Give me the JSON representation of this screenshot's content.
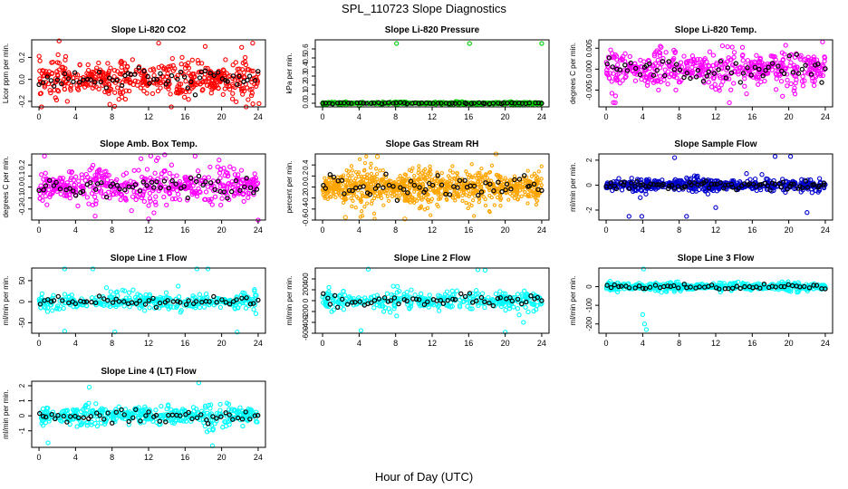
{
  "page": {
    "title": "SPL_110723  Slope Diagnostics",
    "xlabel": "Hour of Day (UTC)"
  },
  "chart_data": [
    {
      "type": "scatter",
      "title": "Slope Li-820 CO2",
      "ylabel": "Licor ppm per min.",
      "color": "#ff0000",
      "x_ticks": [
        0,
        4,
        8,
        12,
        16,
        20,
        24
      ],
      "xlim": [
        -0.8,
        24.8
      ],
      "y_ticks": [
        -0.2,
        0,
        0.2
      ],
      "y_tick_labels": [
        "-0.2",
        "0.0",
        "0.2"
      ],
      "ylim": [
        -0.25,
        0.36
      ],
      "spread": 0.11,
      "center": 0.0,
      "n": 480,
      "n_black": 60,
      "outliers": [
        [
          2.2,
          0.35
        ],
        [
          13.1,
          0.33
        ],
        [
          23.4,
          0.33
        ],
        [
          24.1,
          -0.22
        ],
        [
          3.1,
          -0.2
        ],
        [
          18.2,
          0.3
        ]
      ]
    },
    {
      "type": "scatter",
      "title": "Slope Li-820 Pressure",
      "ylabel": "kPa per min.",
      "color": "#00cc00",
      "x_ticks": [
        0,
        4,
        8,
        12,
        16,
        20,
        24
      ],
      "xlim": [
        -0.8,
        24.8
      ],
      "y_ticks": [
        0,
        0.1,
        0.2,
        0.3,
        0.4,
        0.5,
        0.6
      ],
      "y_tick_labels": [
        "0.0",
        "0.1",
        "0.2",
        "0.3",
        "0.4",
        "0.5",
        "0.6"
      ],
      "ylim": [
        -0.04,
        0.7
      ],
      "spread": 0.008,
      "center": 0.0,
      "n": 500,
      "n_black": 60,
      "outliers": [
        [
          8.1,
          0.66
        ],
        [
          16.1,
          0.66
        ],
        [
          24.0,
          0.66
        ],
        [
          4.0,
          -0.03
        ]
      ]
    },
    {
      "type": "scatter",
      "title": "Slope Li-820 Temp.",
      "ylabel": "degrees C per min.",
      "color": "#ff00ff",
      "x_ticks": [
        0,
        4,
        8,
        12,
        16,
        20,
        24
      ],
      "xlim": [
        -0.8,
        24.8
      ],
      "y_ticks": [
        -0.005,
        0,
        0.005
      ],
      "y_tick_labels": [
        "-0.005",
        "0.000",
        "0.005"
      ],
      "ylim": [
        -0.009,
        0.007
      ],
      "spread": 0.003,
      "center": 0.0,
      "n": 480,
      "n_black": 60,
      "outliers": [
        [
          1.0,
          -0.008
        ],
        [
          13.5,
          -0.008
        ],
        [
          23.7,
          0.0065
        ]
      ]
    },
    {
      "type": "scatter",
      "title": "Slope Amb. Box Temp.",
      "ylabel": "degrees C per min.",
      "color": "#ff00ff",
      "x_ticks": [
        0,
        4,
        8,
        12,
        16,
        20,
        24
      ],
      "xlim": [
        -0.8,
        24.8
      ],
      "y_ticks": [
        -0.2,
        -0.1,
        0,
        0.1,
        0.2
      ],
      "y_tick_labels": [
        "-0.2",
        "-0.1",
        "0.0",
        "0.1",
        "0.2"
      ],
      "ylim": [
        -0.3,
        0.3
      ],
      "spread": 0.12,
      "center": 0.0,
      "n": 480,
      "n_black": 60,
      "outliers": [
        [
          0.6,
          0.28
        ],
        [
          17.1,
          0.28
        ],
        [
          24.0,
          -0.3
        ],
        [
          12.0,
          -0.29
        ]
      ]
    },
    {
      "type": "scatter",
      "title": "Slope Gas Stream RH",
      "ylabel": "percent per min.",
      "color": "#ffa500",
      "x_ticks": [
        0,
        4,
        8,
        12,
        16,
        20,
        24
      ],
      "xlim": [
        -0.8,
        24.8
      ],
      "y_ticks": [
        -0.6,
        -0.4,
        -0.2,
        0,
        0.2,
        0.4
      ],
      "y_tick_labels": [
        "-0.6",
        "-0.4",
        "-0.2",
        "0.0",
        "0.2",
        "0.4"
      ],
      "ylim": [
        -0.6,
        0.6
      ],
      "spread": 0.22,
      "center": 0.0,
      "n": 900,
      "n_black": 60,
      "outliers": [
        [
          6.0,
          0.55
        ],
        [
          9.0,
          -0.58
        ],
        [
          19.0,
          0.6
        ],
        [
          2.5,
          -0.55
        ]
      ]
    },
    {
      "type": "scatter",
      "title": "Slope Sample Flow",
      "ylabel": "ml/min per min.",
      "color": "#0000cc",
      "x_ticks": [
        0,
        4,
        8,
        12,
        16,
        20,
        24
      ],
      "xlim": [
        -0.8,
        24.8
      ],
      "y_ticks": [
        -2,
        0,
        2
      ],
      "y_tick_labels": [
        "-2",
        "0",
        "2"
      ],
      "ylim": [
        -2.8,
        2.5
      ],
      "spread": 0.35,
      "center": 0.0,
      "n": 520,
      "n_black": 80,
      "outliers": [
        [
          2.5,
          -2.5
        ],
        [
          3.9,
          -2.5
        ],
        [
          8.8,
          -2.5
        ],
        [
          18.5,
          2.3
        ],
        [
          20.2,
          2.3
        ],
        [
          22.0,
          -2.2
        ],
        [
          7.5,
          2.2
        ],
        [
          12.0,
          -1.8
        ]
      ]
    },
    {
      "type": "scatter",
      "title": "Slope Line 1 Flow",
      "ylabel": "ml/min per min.",
      "color": "#00ffff",
      "x_ticks": [
        0,
        4,
        8,
        12,
        16,
        20,
        24
      ],
      "xlim": [
        -0.8,
        24.8
      ],
      "y_ticks": [
        -50,
        0,
        50
      ],
      "y_tick_labels": [
        "-50",
        "0",
        "50"
      ],
      "ylim": [
        -75,
        80
      ],
      "spread": 14,
      "center": 0.0,
      "n": 360,
      "n_black": 55,
      "outliers": [
        [
          2.8,
          78
        ],
        [
          5.9,
          78
        ],
        [
          17.3,
          78
        ],
        [
          18.5,
          78
        ],
        [
          2.8,
          -70
        ],
        [
          8.3,
          -72
        ],
        [
          21.7,
          -72
        ]
      ]
    },
    {
      "type": "scatter",
      "title": "Slope Line 2 Flow",
      "ylabel": "ml/min per min.",
      "color": "#00ffff",
      "x_ticks": [
        0,
        4,
        8,
        12,
        16,
        20,
        24
      ],
      "xlim": [
        -0.8,
        24.8
      ],
      "y_ticks": [
        -600,
        -400,
        -200,
        0,
        200,
        400
      ],
      "y_tick_labels": [
        "-600",
        "-400",
        "-200",
        "0",
        "200",
        "400"
      ],
      "ylim": [
        -600,
        600
      ],
      "spread": 110,
      "center": 0.0,
      "n": 360,
      "n_black": 55,
      "outliers": [
        [
          5.0,
          580
        ],
        [
          17.0,
          570
        ],
        [
          17.8,
          560
        ],
        [
          4.2,
          -550
        ],
        [
          20.0,
          -580
        ],
        [
          22.0,
          -400
        ]
      ]
    },
    {
      "type": "scatter",
      "title": "Slope Line 3 Flow",
      "ylabel": "ml/min per min.",
      "color": "#00ffff",
      "x_ticks": [
        0,
        4,
        8,
        12,
        16,
        20,
        24
      ],
      "xlim": [
        -0.8,
        24.8
      ],
      "y_ticks": [
        -200,
        -100,
        0
      ],
      "y_tick_labels": [
        "-200",
        "-100",
        "0"
      ],
      "ylim": [
        -250,
        100
      ],
      "spread": 14,
      "center": 0.0,
      "n": 500,
      "n_black": 55,
      "outliers": [
        [
          4.1,
          95
        ],
        [
          4.2,
          -200
        ],
        [
          4.4,
          -230
        ],
        [
          4.0,
          -150
        ]
      ]
    },
    {
      "type": "scatter",
      "title": "Slope Line 4 (LT) Flow",
      "ylabel": "ml/min per min.",
      "color": "#00ffff",
      "x_ticks": [
        0,
        4,
        8,
        12,
        16,
        20,
        24
      ],
      "xlim": [
        -0.8,
        24.8
      ],
      "y_ticks": [
        -1,
        0,
        1,
        2
      ],
      "y_tick_labels": [
        "-1",
        "0",
        "1",
        "2"
      ],
      "ylim": [
        -2.1,
        2.3
      ],
      "spread": 0.45,
      "center": 0.0,
      "n": 420,
      "n_black": 55,
      "outliers": [
        [
          17.5,
          2.2
        ],
        [
          19.0,
          -2.0
        ],
        [
          1.0,
          -1.8
        ],
        [
          5.5,
          1.9
        ]
      ]
    }
  ]
}
